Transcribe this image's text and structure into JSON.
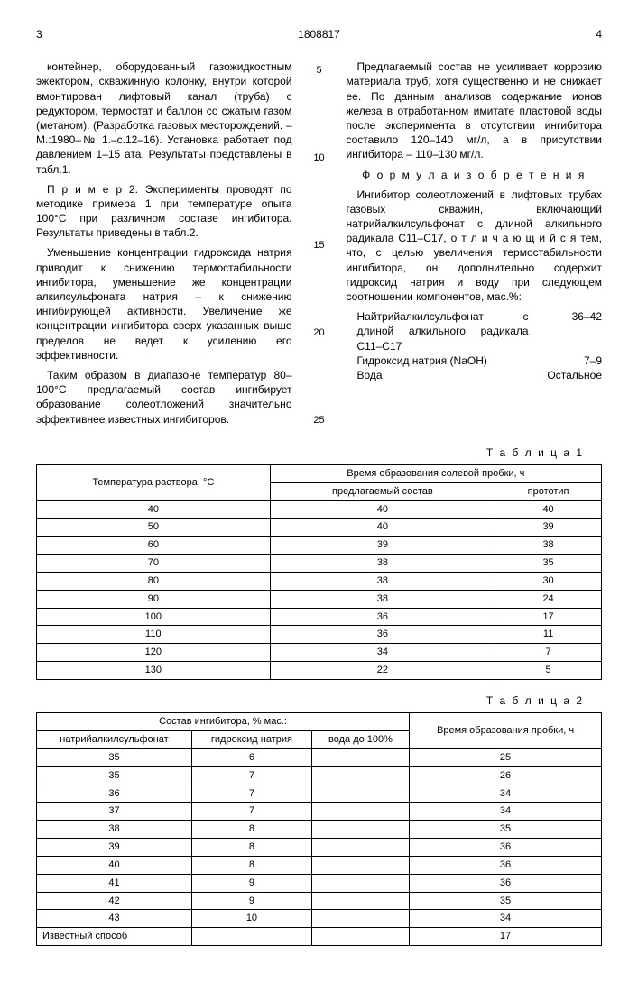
{
  "header": {
    "page_left": "3",
    "doc_number": "1808817",
    "page_right": "4"
  },
  "left_column": {
    "p1": "контейнер, оборудованный газожидкостным эжектором, скважинную колонку, внутри которой вмонтирован лифтовый канал (труба) с редуктором, термостат и баллон со сжатым газом (метаном). (Разработка газовых месторождений. – М.:1980–№ 1.–с.12–16). Установка работает под давлением 1–15 ата. Результаты представлены в табл.1.",
    "p2": "П р и м е р 2. Эксперименты проводят по методике примера 1 при температуре опыта 100°С при различном составе ингибитора. Результаты приведены в табл.2.",
    "p3": "Уменьшение концентрации гидроксида натрия приводит к снижению термостабильности ингибитора, уменьшение же концентрации алкилсульфоната натрия – к снижению ингибирующей активности. Увеличение же концентрации ингибитора сверх указанных выше пределов не ведет к усилению его эффективности.",
    "p4": "Таким образом в диапазоне температур 80–100°С предлагаемый состав ингибирует образование солеотложений значительно эффективнее известных ингибиторов."
  },
  "line_numbers": [
    "5",
    "10",
    "15",
    "20",
    "25"
  ],
  "right_column": {
    "p1": "Предлагаемый состав не усиливает коррозию материала труб, хотя существенно и не снижает ее. По данным анализов содержание ионов железа в отработанном имитате пластовой воды после эксперимента в отсутствии ингибитора составило 120–140 мг/л, а в присутствии ингибитора – 110–130 мг/л.",
    "formula_title": "Ф о р м у л а  и з о б р е т е н и я",
    "p2": "Ингибитор солеотложений в лифтовых трубах газовых скважин, включающий натрийалкилсульфонат с длиной алкильного радикала С11–С17, о т л и ч а ю щ и й с я тем, что, с целью увеличения термостабильности ингибитора, он дополнительно содержит гидроксид натрия и воду при следующем соотношении компонентов, мас.%:",
    "composition": [
      {
        "name": "Найтрийалкилсульфонат с длиной алкильного радикала С11–С17",
        "value": "36–42"
      },
      {
        "name": "Гидроксид натрия (NaOH)",
        "value": "7–9"
      },
      {
        "name": "Вода",
        "value": "Остальное"
      }
    ]
  },
  "table1": {
    "label": "Т а б л и ц а  1",
    "head_col1": "Температура раствора, °С",
    "head_span": "Время образования солевой пробки, ч",
    "head_sub1": "предлагаемый состав",
    "head_sub2": "прототип",
    "rows": [
      [
        "40",
        "40",
        "40"
      ],
      [
        "50",
        "40",
        "39"
      ],
      [
        "60",
        "39",
        "38"
      ],
      [
        "70",
        "38",
        "35"
      ],
      [
        "80",
        "38",
        "30"
      ],
      [
        "90",
        "38",
        "24"
      ],
      [
        "100",
        "36",
        "17"
      ],
      [
        "110",
        "36",
        "11"
      ],
      [
        "120",
        "34",
        "7"
      ],
      [
        "130",
        "22",
        "5"
      ]
    ]
  },
  "table2": {
    "label": "Т а б л и ц а  2",
    "head_span": "Состав ингибитора, % мас.:",
    "head_sub1": "натрийалкилсульфонат",
    "head_sub2": "гидроксид натрия",
    "head_sub3": "вода до 100%",
    "head_col4": "Время образования пробки, ч",
    "rows": [
      [
        "35",
        "6",
        "",
        "25"
      ],
      [
        "35",
        "7",
        "",
        "26"
      ],
      [
        "36",
        "7",
        "",
        "34"
      ],
      [
        "37",
        "7",
        "",
        "34"
      ],
      [
        "38",
        "8",
        "",
        "35"
      ],
      [
        "39",
        "8",
        "",
        "36"
      ],
      [
        "40",
        "8",
        "",
        "36"
      ],
      [
        "41",
        "9",
        "",
        "36"
      ],
      [
        "42",
        "9",
        "",
        "35"
      ],
      [
        "43",
        "10",
        "",
        "34"
      ],
      [
        "Известный способ",
        "",
        "",
        "17"
      ]
    ]
  }
}
